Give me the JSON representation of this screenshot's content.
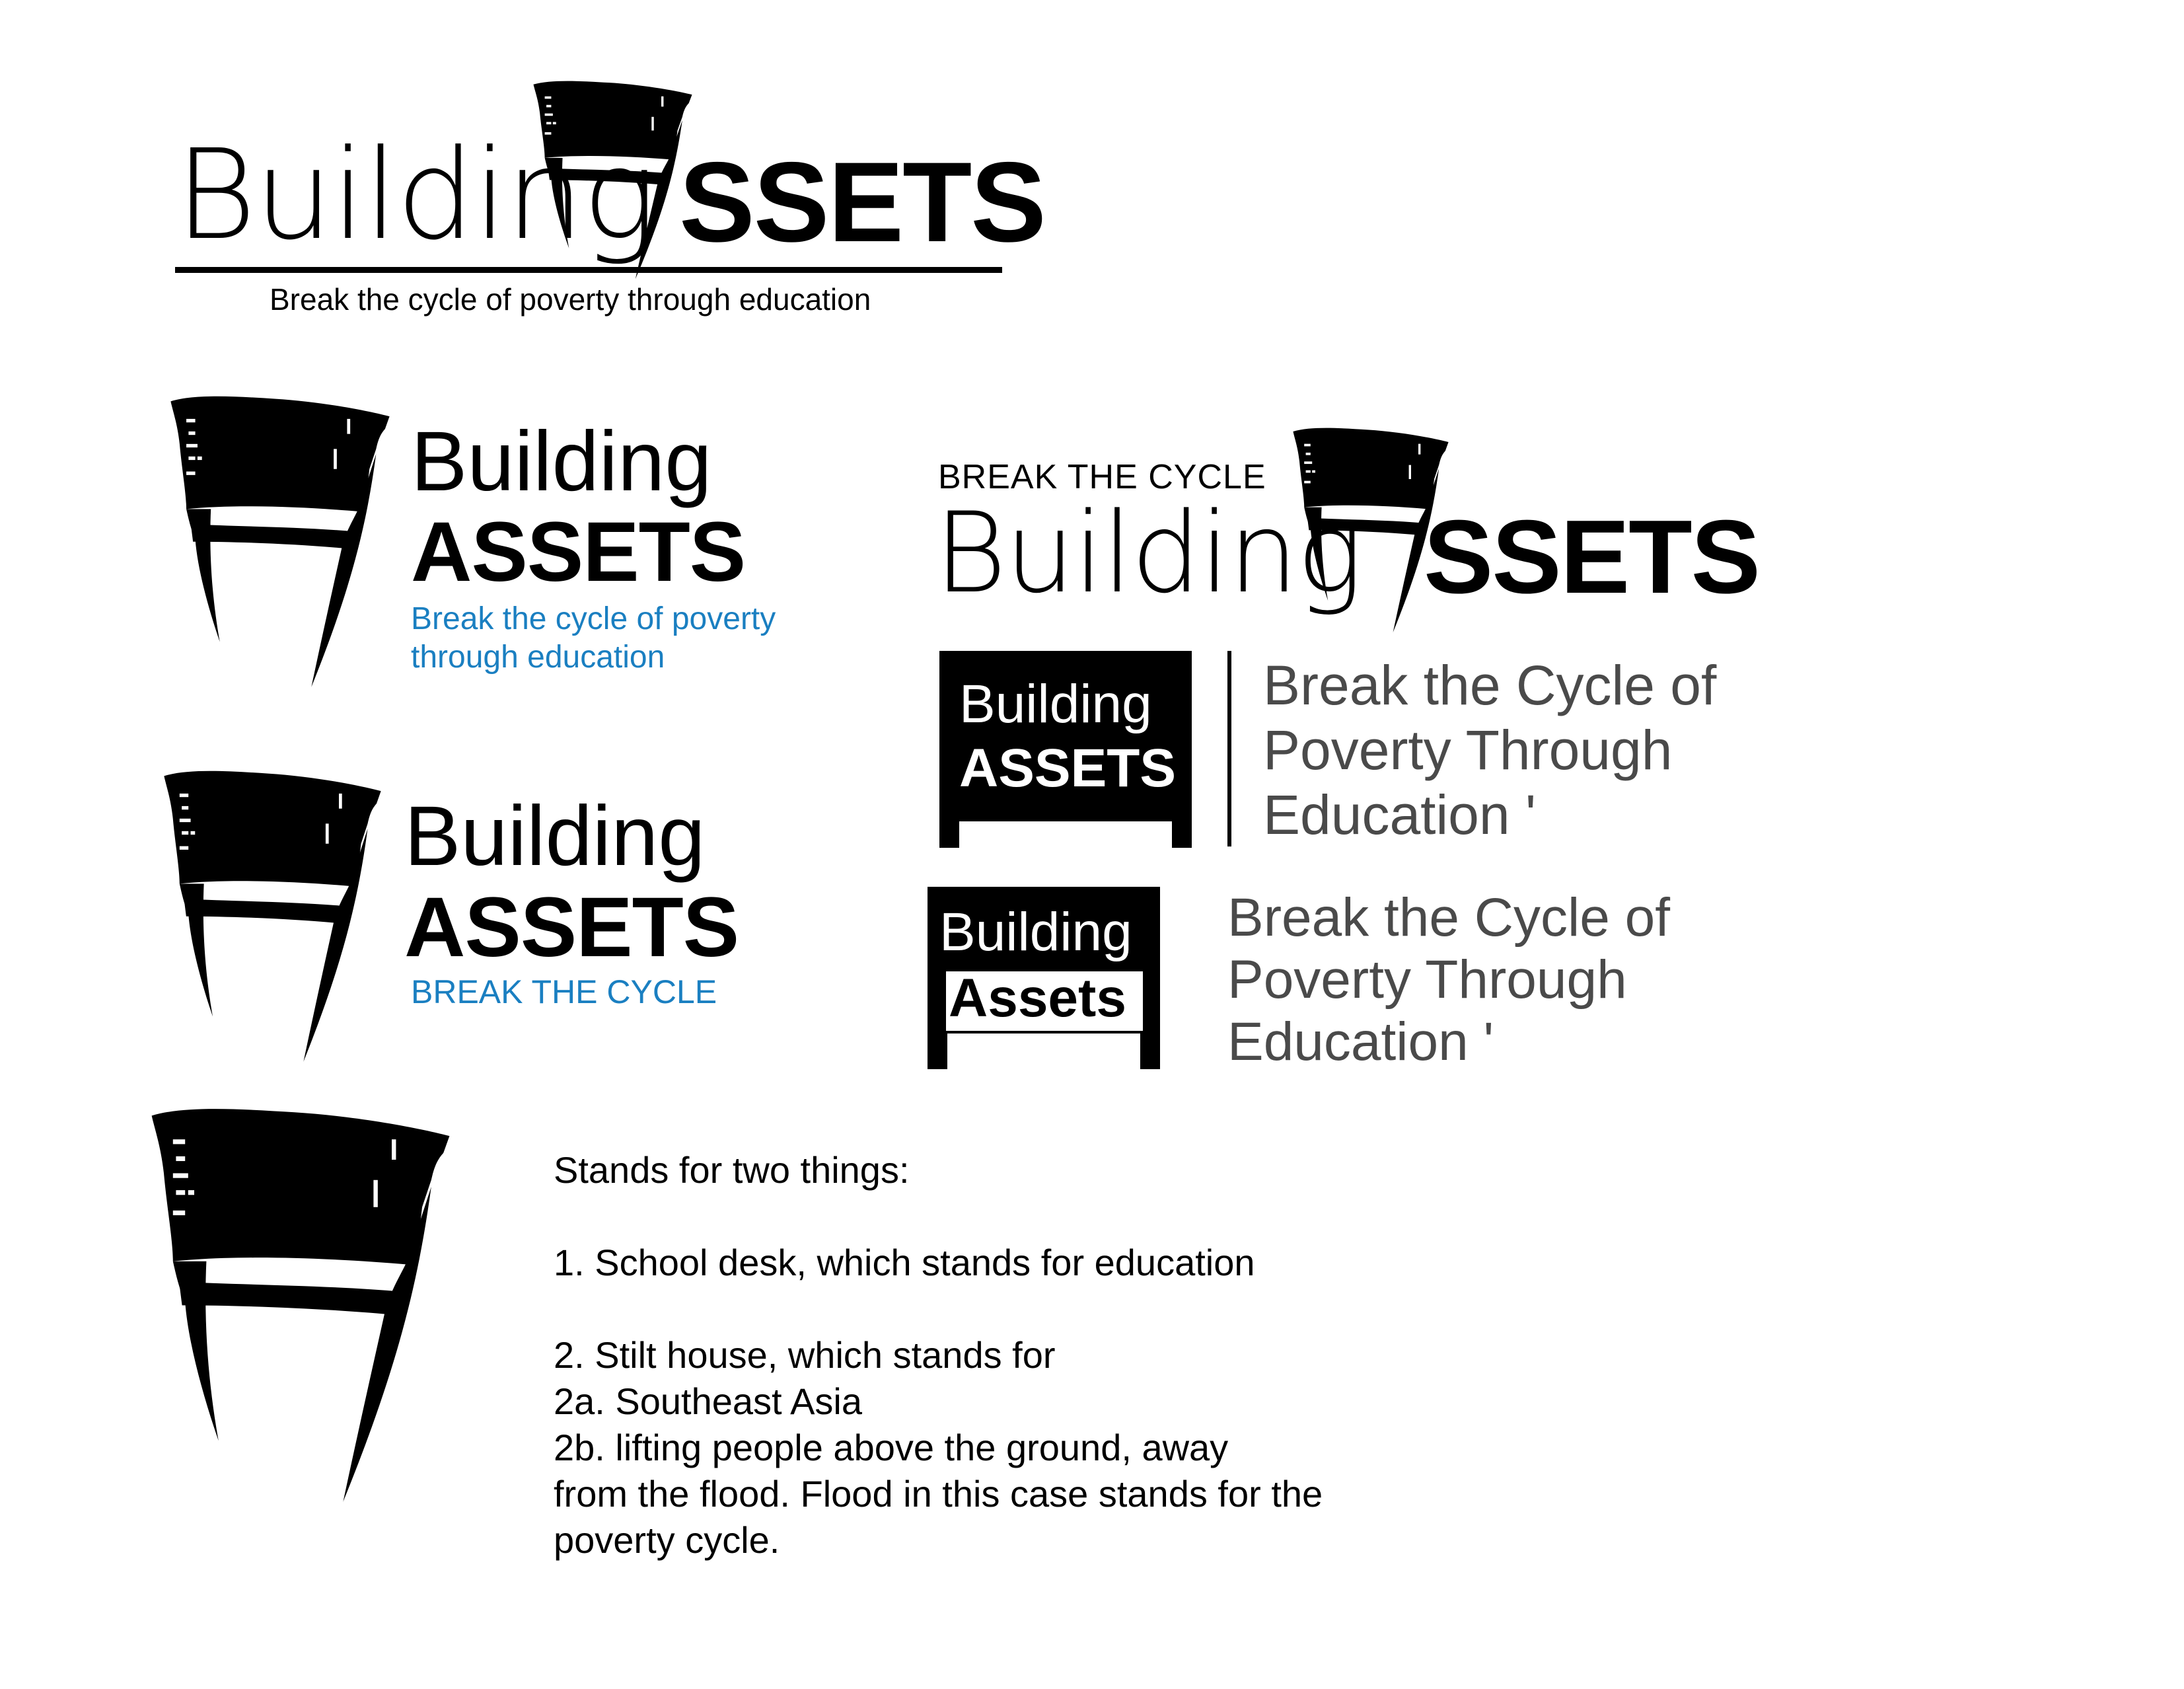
{
  "logo_primary": {
    "word": "Building",
    "assets": "SSETS",
    "tagline": "Break the cycle of poverty through education"
  },
  "logo_stacked_tagline": {
    "word": "Building",
    "assets": "ASSETS",
    "tagline": "Break the cycle of poverty through education",
    "tagline_color": "#1a7fc1"
  },
  "logo_stacked_short": {
    "word": "Building",
    "assets": "ASSETS",
    "tagline": "BREAK THE CYCLE",
    "tagline_color": "#1a7fc1"
  },
  "logo_kicker": {
    "kicker": "BREAK THE CYCLE",
    "word": "Building",
    "assets": "SSETS"
  },
  "logo_sign_caps": {
    "word": "Building",
    "assets": "ASSETS",
    "tagline_lines": [
      "Break the Cycle of",
      "Poverty Through",
      "Education '"
    ]
  },
  "logo_sign_mixed": {
    "word": "Building",
    "assets": "Assets",
    "tagline_lines": [
      "Break the Cycle of",
      "Poverty Through",
      "Education '"
    ]
  },
  "meaning": {
    "lines": [
      "Stands for two things:",
      "",
      "1. School desk, which stands for education",
      "",
      "2. Stilt house, which stands for",
      "2a. Southeast Asia",
      "2b. lifting people above the ground, away",
      "from the flood. Flood in this case stands for the",
      "poverty cycle."
    ]
  },
  "icons": {
    "mark": "desk-stilt-house-icon"
  },
  "colors": {
    "ink": "#000000",
    "accent_blue": "#1a7fc1",
    "tagline_gray": "#4a4a4a"
  }
}
